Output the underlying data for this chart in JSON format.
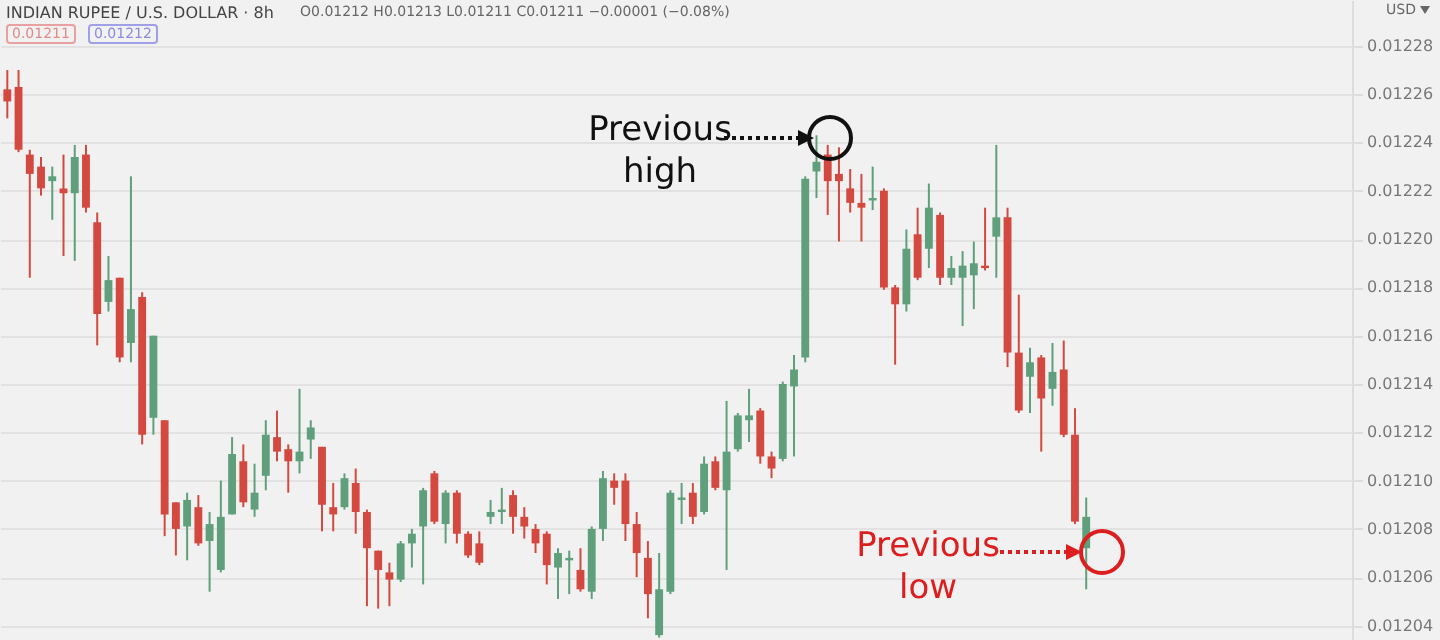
{
  "chart_data": {
    "type": "candlestick",
    "title": "INDIAN RUPEE / U.S. DOLLAR · 8h",
    "ylabel": "USD",
    "annotations": [
      "O0.01212 H0.01213 L0.01211 C0.01211 −0.00001 (−0.08%)",
      "0.01211",
      "0.01212",
      "Previous high",
      "Previous low"
    ],
    "categories": [
      null,
      null,
      null,
      null,
      null,
      null,
      null,
      null,
      null,
      null,
      null,
      null,
      null,
      null,
      null,
      null,
      null,
      null,
      null,
      null,
      null,
      null,
      null,
      null,
      null,
      null,
      null,
      null,
      null,
      null,
      null,
      null,
      null,
      null,
      null,
      null,
      null,
      null,
      null,
      null,
      null,
      null,
      null,
      null,
      null,
      null,
      null,
      null,
      null,
      null,
      null,
      null,
      null,
      null,
      null,
      null,
      null,
      null,
      null,
      null,
      null,
      null,
      null,
      null,
      null,
      null,
      null,
      null,
      null,
      null,
      null,
      null,
      null,
      null,
      null,
      null,
      null,
      null,
      null,
      null,
      null,
      null,
      null,
      null,
      null,
      null,
      null,
      null,
      null,
      null,
      null,
      null,
      null,
      null,
      null,
      null,
      null,
      null,
      null,
      null,
      null,
      null,
      null,
      null,
      null,
      null,
      null,
      null,
      null,
      null,
      null,
      null,
      null,
      null,
      null,
      null,
      null,
      null,
      null,
      null
    ],
    "ohlc": [
      [
        0.012262,
        0.01227,
        0.01225,
        0.012257
      ],
      [
        0.012263,
        0.01227,
        0.012236,
        0.012237
      ],
      [
        0.012235,
        0.012237,
        0.012184,
        0.012227
      ],
      [
        0.01223,
        0.012234,
        0.012218,
        0.012221
      ],
      [
        0.012224,
        0.01223,
        0.012208,
        0.012226
      ],
      [
        0.012221,
        0.012235,
        0.012193,
        0.012219
      ],
      [
        0.012219,
        0.012239,
        0.012191,
        0.012234
      ],
      [
        0.012235,
        0.012239,
        0.012211,
        0.012213
      ],
      [
        0.012207,
        0.012211,
        0.012156,
        0.012169
      ],
      [
        0.012174,
        0.012193,
        0.01217,
        0.012183
      ],
      [
        0.012184,
        0.012184,
        0.012149,
        0.012151
      ],
      [
        0.012157,
        0.012226,
        0.012149,
        0.012171
      ],
      [
        0.012176,
        0.012178,
        0.012115,
        0.012119
      ],
      [
        0.012126,
        0.01216,
        0.012119,
        0.01216
      ],
      [
        0.012125,
        0.012125,
        0.012077,
        0.012086
      ],
      [
        0.012091,
        0.012091,
        0.012069,
        0.01208
      ],
      [
        0.012081,
        0.012095,
        0.012067,
        0.012092
      ],
      [
        0.012089,
        0.012094,
        0.012073,
        0.012074
      ],
      [
        0.012075,
        0.012087,
        0.012054,
        0.012082
      ],
      [
        0.012063,
        0.0121,
        0.012062,
        0.012085
      ],
      [
        0.012086,
        0.012118,
        0.012086,
        0.012111
      ],
      [
        0.012108,
        0.012115,
        0.012089,
        0.012091
      ],
      [
        0.012088,
        0.012107,
        0.012085,
        0.012095
      ],
      [
        0.012102,
        0.012125,
        0.012096,
        0.012119
      ],
      [
        0.012118,
        0.012129,
        0.012108,
        0.012112
      ],
      [
        0.012113,
        0.012115,
        0.012095,
        0.012108
      ],
      [
        0.012108,
        0.012138,
        0.012103,
        0.012112
      ],
      [
        0.012117,
        0.012125,
        0.012109,
        0.012122
      ],
      [
        0.012114,
        0.012114,
        0.012079,
        0.01209
      ],
      [
        0.012089,
        0.012099,
        0.012079,
        0.012086
      ],
      [
        0.012089,
        0.012103,
        0.012088,
        0.012101
      ],
      [
        0.012099,
        0.012105,
        0.012078,
        0.012087
      ],
      [
        0.012087,
        0.012088,
        0.012048,
        0.012072
      ],
      [
        0.012071,
        0.012071,
        0.012047,
        0.012063
      ],
      [
        0.012062,
        0.012066,
        0.012048,
        0.012059
      ],
      [
        0.012059,
        0.012075,
        0.012058,
        0.012074
      ],
      [
        0.012074,
        0.01208,
        0.012064,
        0.012078
      ],
      [
        0.012081,
        0.012097,
        0.012057,
        0.012096
      ],
      [
        0.012103,
        0.012104,
        0.012082,
        0.012083
      ],
      [
        0.012082,
        0.012096,
        0.012074,
        0.012095
      ],
      [
        0.012095,
        0.012096,
        0.012074,
        0.012078
      ],
      [
        0.012078,
        0.012079,
        0.012068,
        0.012069
      ],
      [
        0.012074,
        0.012079,
        0.012065,
        0.012066
      ],
      [
        0.012085,
        0.012092,
        0.012082,
        0.012087
      ],
      [
        0.012087,
        0.012097,
        0.012082,
        0.012088
      ],
      [
        0.012094,
        0.012096,
        0.012078,
        0.012085
      ],
      [
        0.012085,
        0.012089,
        0.012076,
        0.012081
      ],
      [
        0.01208,
        0.012082,
        0.01207,
        0.012074
      ],
      [
        0.012078,
        0.012079,
        0.012057,
        0.012065
      ],
      [
        0.012064,
        0.012072,
        0.012051,
        0.01207
      ],
      [
        0.012067,
        0.012071,
        0.012053,
        0.012068
      ],
      [
        0.012063,
        0.012072,
        0.012054,
        0.012055
      ],
      [
        0.012054,
        0.012081,
        0.012051,
        0.01208
      ],
      [
        0.01208,
        0.012104,
        0.012075,
        0.012101
      ],
      [
        0.0121,
        0.012103,
        0.01209,
        0.012097
      ],
      [
        0.0121,
        0.012103,
        0.012075,
        0.012082
      ],
      [
        0.012082,
        0.012087,
        0.01206,
        0.01207
      ],
      [
        0.012068,
        0.012075,
        0.012043,
        0.012053
      ],
      [
        0.012036,
        0.01207,
        0.012035,
        0.012055
      ],
      [
        0.012054,
        0.012096,
        0.012053,
        0.012095
      ],
      [
        0.012092,
        0.012099,
        0.012082,
        0.012093
      ],
      [
        0.012095,
        0.012099,
        0.012082,
        0.012085
      ],
      [
        0.012087,
        0.01211,
        0.012086,
        0.012107
      ],
      [
        0.012108,
        0.01211,
        0.012096,
        0.012097
      ],
      [
        0.012096,
        0.012133,
        0.012063,
        0.012112
      ],
      [
        0.012113,
        0.012128,
        0.012112,
        0.012127
      ],
      [
        0.012125,
        0.012138,
        0.012116,
        0.012127
      ],
      [
        0.012129,
        0.01213,
        0.012107,
        0.01211
      ],
      [
        0.01211,
        0.012112,
        0.012101,
        0.012105
      ],
      [
        0.012109,
        0.012141,
        0.012108,
        0.01214
      ],
      [
        0.012139,
        0.012152,
        0.01211,
        0.012146
      ],
      [
        0.012151,
        0.012226,
        0.012149,
        0.012225
      ],
      [
        0.012228,
        0.012243,
        0.012217,
        0.012232
      ],
      [
        0.012235,
        0.012239,
        0.01221,
        0.012224
      ],
      [
        0.012227,
        0.012238,
        0.012199,
        0.012224
      ],
      [
        0.012221,
        0.012229,
        0.012211,
        0.012215
      ],
      [
        0.012215,
        0.012227,
        0.012199,
        0.012213
      ],
      [
        0.012216,
        0.01223,
        0.012212,
        0.012217
      ],
      [
        0.01222,
        0.012221,
        0.012179,
        0.01218
      ],
      [
        0.01218,
        0.012181,
        0.012148,
        0.012173
      ],
      [
        0.012173,
        0.012204,
        0.01217,
        0.012196
      ],
      [
        0.012202,
        0.012213,
        0.012183,
        0.012184
      ],
      [
        0.012196,
        0.012223,
        0.012188,
        0.012213
      ],
      [
        0.01221,
        0.012211,
        0.012181,
        0.012184
      ],
      [
        0.012184,
        0.012193,
        0.012181,
        0.012188
      ],
      [
        0.012184,
        0.012195,
        0.012164,
        0.012189
      ],
      [
        0.012185,
        0.012199,
        0.012171,
        0.01219
      ],
      [
        0.012189,
        0.012213,
        0.012187,
        0.012188
      ],
      [
        0.012201,
        0.012239,
        0.012184,
        0.012209
      ],
      [
        0.012209,
        0.012213,
        0.012147,
        0.012153
      ],
      [
        0.012153,
        0.012177,
        0.012128,
        0.012129
      ],
      [
        0.012143,
        0.012155,
        0.012128,
        0.012149
      ],
      [
        0.012151,
        0.012152,
        0.012112,
        0.012134
      ],
      [
        0.012138,
        0.012157,
        0.012131,
        0.012145
      ],
      [
        0.012146,
        0.012158,
        0.012118,
        0.012119
      ],
      [
        0.012119,
        0.01213,
        0.012082,
        0.012083
      ],
      [
        0.012072,
        0.012093,
        0.012055,
        0.012085
      ],
      null,
      null,
      null,
      null,
      null,
      null,
      null,
      null,
      null,
      null,
      null,
      null,
      null,
      null,
      null,
      null,
      null,
      null,
      null,
      null,
      null,
      null,
      null
    ],
    "colors": [
      "#d4493f",
      "#d4493f",
      "#d4493f",
      "#d4493f",
      "#5f9f7b",
      "#d4493f",
      "#5f9f7b",
      "#d4493f",
      "#d4493f",
      "#5f9f7b",
      "#d4493f",
      "#5f9f7b",
      "#d4493f",
      "#5f9f7b",
      "#d4493f",
      "#d4493f",
      "#5f9f7b",
      "#d4493f",
      "#5f9f7b",
      "#5f9f7b",
      "#5f9f7b",
      "#d4493f",
      "#5f9f7b",
      "#5f9f7b",
      "#d4493f",
      "#d4493f",
      "#5f9f7b",
      "#5f9f7b",
      "#d4493f",
      "#d4493f",
      "#5f9f7b",
      "#d4493f",
      "#d4493f",
      "#d4493f",
      "#d4493f",
      "#5f9f7b",
      "#5f9f7b",
      "#5f9f7b",
      "#d4493f",
      "#5f9f7b",
      "#d4493f",
      "#d4493f",
      "#d4493f",
      "#5f9f7b",
      "#5f9f7b",
      "#d4493f",
      "#d4493f",
      "#d4493f",
      "#d4493f",
      "#5f9f7b",
      "#5f9f7b",
      "#d4493f",
      "#5f9f7b",
      "#5f9f7b",
      "#d4493f",
      "#d4493f",
      "#d4493f",
      "#d4493f",
      "#5f9f7b",
      "#5f9f7b",
      "#5f9f7b",
      "#d4493f",
      "#5f9f7b",
      "#d4493f",
      "#5f9f7b",
      "#5f9f7b",
      "#5f9f7b",
      "#d4493f",
      "#d4493f",
      "#5f9f7b",
      "#5f9f7b",
      "#5f9f7b",
      "#5f9f7b",
      "#d4493f",
      "#d4493f",
      "#d4493f",
      "#d4493f",
      "#5f9f7b",
      "#d4493f",
      "#d4493f",
      "#5f9f7b",
      "#d4493f",
      "#5f9f7b",
      "#d4493f",
      "#5f9f7b",
      "#5f9f7b",
      "#5f9f7b",
      "#d4493f",
      "#5f9f7b",
      "#d4493f",
      "#d4493f",
      "#5f9f7b",
      "#d4493f",
      "#5f9f7b",
      "#d4493f",
      "#d4493f",
      "#5f9f7b",
      null,
      null,
      null,
      null,
      null,
      null,
      null,
      null,
      null,
      null,
      null,
      null,
      null,
      null,
      null,
      null,
      null,
      null,
      null,
      null,
      null,
      null,
      null
    ],
    "ylim": [
      0.012034,
      0.012299
    ],
    "yticks": [
      0.01204,
      0.01206,
      0.01208,
      {
        "value": 0.0121,
        "label": "0.01210"
      },
      0.01212,
      0.01214,
      0.01216,
      0.01218,
      {
        "value": 0.0122,
        "label": "0.01220"
      },
      0.01222,
      0.01224,
      0.01226,
      0.01228
    ],
    "grid": "y",
    "tick_labels": "y"
  }
}
